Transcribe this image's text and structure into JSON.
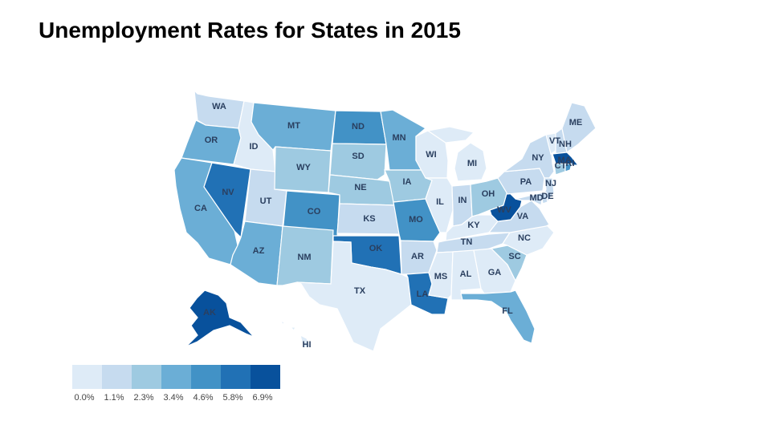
{
  "title": "Unemployment Rates for States in 2015",
  "legend": {
    "colors": [
      "#deebf7",
      "#c6dbef",
      "#9ecae1",
      "#6baed6",
      "#4292c6",
      "#2171b5",
      "#08519c"
    ],
    "ticks": [
      "0.0%",
      "1.1%",
      "2.3%",
      "3.4%",
      "4.6%",
      "5.8%",
      "6.9%"
    ]
  },
  "states": [
    {
      "code": "WA",
      "bin": 1
    },
    {
      "code": "OR",
      "bin": 3
    },
    {
      "code": "CA",
      "bin": 3
    },
    {
      "code": "ID",
      "bin": 0
    },
    {
      "code": "NV",
      "bin": 5
    },
    {
      "code": "UT",
      "bin": 1
    },
    {
      "code": "AZ",
      "bin": 3
    },
    {
      "code": "MT",
      "bin": 3
    },
    {
      "code": "WY",
      "bin": 2
    },
    {
      "code": "CO",
      "bin": 4
    },
    {
      "code": "NM",
      "bin": 2
    },
    {
      "code": "ND",
      "bin": 4
    },
    {
      "code": "SD",
      "bin": 2
    },
    {
      "code": "NE",
      "bin": 2
    },
    {
      "code": "KS",
      "bin": 1
    },
    {
      "code": "OK",
      "bin": 5
    },
    {
      "code": "TX",
      "bin": 0
    },
    {
      "code": "MN",
      "bin": 3
    },
    {
      "code": "IA",
      "bin": 2
    },
    {
      "code": "MO",
      "bin": 4
    },
    {
      "code": "AR",
      "bin": 1
    },
    {
      "code": "LA",
      "bin": 5
    },
    {
      "code": "WI",
      "bin": 0
    },
    {
      "code": "IL",
      "bin": 0
    },
    {
      "code": "MI",
      "bin": 0
    },
    {
      "code": "IN",
      "bin": 1
    },
    {
      "code": "OH",
      "bin": 2
    },
    {
      "code": "KY",
      "bin": 0
    },
    {
      "code": "TN",
      "bin": 1
    },
    {
      "code": "MS",
      "bin": 0
    },
    {
      "code": "AL",
      "bin": 0
    },
    {
      "code": "GA",
      "bin": 0
    },
    {
      "code": "FL",
      "bin": 3
    },
    {
      "code": "SC",
      "bin": 2
    },
    {
      "code": "NC",
      "bin": 0
    },
    {
      "code": "VA",
      "bin": 1
    },
    {
      "code": "WV",
      "bin": 6
    },
    {
      "code": "PA",
      "bin": 1
    },
    {
      "code": "NY",
      "bin": 1
    },
    {
      "code": "NJ",
      "bin": 1
    },
    {
      "code": "DE",
      "bin": 1
    },
    {
      "code": "MD",
      "bin": 1
    },
    {
      "code": "VT",
      "bin": 0
    },
    {
      "code": "NH",
      "bin": 1
    },
    {
      "code": "ME",
      "bin": 1
    },
    {
      "code": "MA",
      "bin": 6
    },
    {
      "code": "CT",
      "bin": 2
    },
    {
      "code": "RI",
      "bin": 4
    },
    {
      "code": "AK",
      "bin": 6
    },
    {
      "code": "HI",
      "bin": 0
    }
  ]
}
